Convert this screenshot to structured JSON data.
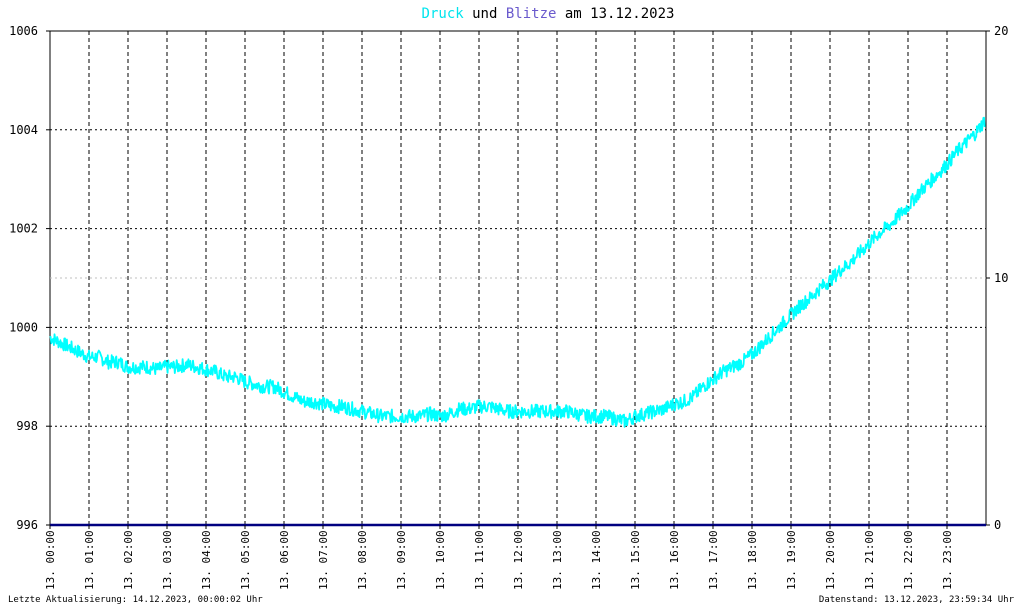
{
  "chart_data": {
    "type": "line",
    "title": {
      "part1": "Druck",
      "part2": " und ",
      "part3": "Blitze",
      "part4": " am 13.12.2023"
    },
    "colors": {
      "pressure": "#00ffff",
      "lightning": "#6a5acd",
      "title_pressure": "#00e5ee",
      "title_lightning": "#6a5acd",
      "baseline": "#000080",
      "grid": "#000000",
      "minor_grid": "#bfbfbf"
    },
    "y_left": {
      "ylim": [
        996,
        1006
      ],
      "ticks": [
        "996",
        "998",
        "1000",
        "1002",
        "1004",
        "1006"
      ]
    },
    "y_right": {
      "ylim": [
        0,
        20
      ],
      "ticks": [
        "0",
        "10",
        "20"
      ]
    },
    "x_ticks": [
      "13. 00:00",
      "13. 01:00",
      "13. 02:00",
      "13. 03:00",
      "13. 04:00",
      "13. 05:00",
      "13. 06:00",
      "13. 07:00",
      "13. 08:00",
      "13. 09:00",
      "13. 10:00",
      "13. 11:00",
      "13. 12:00",
      "13. 13:00",
      "13. 14:00",
      "13. 15:00",
      "13. 16:00",
      "13. 17:00",
      "13. 18:00",
      "13. 19:00",
      "13. 20:00",
      "13. 21:00",
      "13. 22:00",
      "13. 23:00"
    ],
    "grid": true,
    "series": [
      {
        "name": "Druck",
        "axis": "left",
        "x_hours": [
          0,
          0.25,
          0.5,
          0.75,
          1,
          1.25,
          1.5,
          1.75,
          2,
          2.25,
          2.5,
          2.75,
          3,
          3.25,
          3.5,
          3.75,
          4,
          4.25,
          4.5,
          4.75,
          5,
          5.25,
          5.5,
          5.75,
          6,
          6.25,
          6.5,
          6.75,
          7,
          7.25,
          7.5,
          7.75,
          8,
          8.25,
          8.5,
          8.75,
          9,
          9.25,
          9.5,
          9.75,
          10,
          10.25,
          10.5,
          10.75,
          11,
          11.25,
          11.5,
          11.75,
          12,
          12.25,
          12.5,
          12.75,
          13,
          13.25,
          13.5,
          13.75,
          14,
          14.25,
          14.5,
          14.75,
          15,
          15.25,
          15.5,
          15.75,
          16,
          16.25,
          16.5,
          16.75,
          17,
          17.25,
          17.5,
          17.75,
          18,
          18.25,
          18.5,
          18.75,
          19,
          19.25,
          19.5,
          19.75,
          20,
          20.25,
          20.5,
          20.75,
          21,
          21.25,
          21.5,
          21.75,
          22,
          22.25,
          22.5,
          22.75,
          23,
          23.25,
          23.5,
          23.75,
          23.98
        ],
        "values": [
          999.8,
          999.7,
          999.6,
          999.5,
          999.4,
          999.4,
          999.3,
          999.3,
          999.2,
          999.2,
          999.2,
          999.15,
          999.2,
          999.2,
          999.25,
          999.2,
          999.15,
          999.1,
          999.0,
          999.0,
          998.9,
          998.85,
          998.8,
          998.8,
          998.7,
          998.6,
          998.5,
          998.5,
          998.45,
          998.4,
          998.4,
          998.35,
          998.3,
          998.25,
          998.2,
          998.2,
          998.2,
          998.2,
          998.2,
          998.25,
          998.2,
          998.25,
          998.35,
          998.35,
          998.4,
          998.4,
          998.35,
          998.3,
          998.3,
          998.3,
          998.3,
          998.3,
          998.3,
          998.3,
          998.25,
          998.2,
          998.2,
          998.2,
          998.15,
          998.1,
          998.2,
          998.25,
          998.3,
          998.35,
          998.45,
          998.5,
          998.6,
          998.8,
          998.95,
          999.1,
          999.2,
          999.3,
          999.45,
          999.65,
          999.85,
          1000.05,
          1000.25,
          1000.45,
          1000.6,
          1000.8,
          1000.95,
          1001.15,
          1001.3,
          1001.5,
          1001.7,
          1001.9,
          1002.05,
          1002.25,
          1002.45,
          1002.7,
          1002.9,
          1003.1,
          1003.3,
          1003.55,
          1003.75,
          1003.95,
          1004.2
        ]
      },
      {
        "name": "Blitze",
        "axis": "right",
        "x_hours": [
          0,
          24
        ],
        "values": [
          0,
          0
        ]
      }
    ]
  },
  "footer": {
    "left": "Letzte Aktualisierung: 14.12.2023, 00:00:02 Uhr",
    "right": "Datenstand: 13.12.2023, 23:59:34 Uhr"
  }
}
